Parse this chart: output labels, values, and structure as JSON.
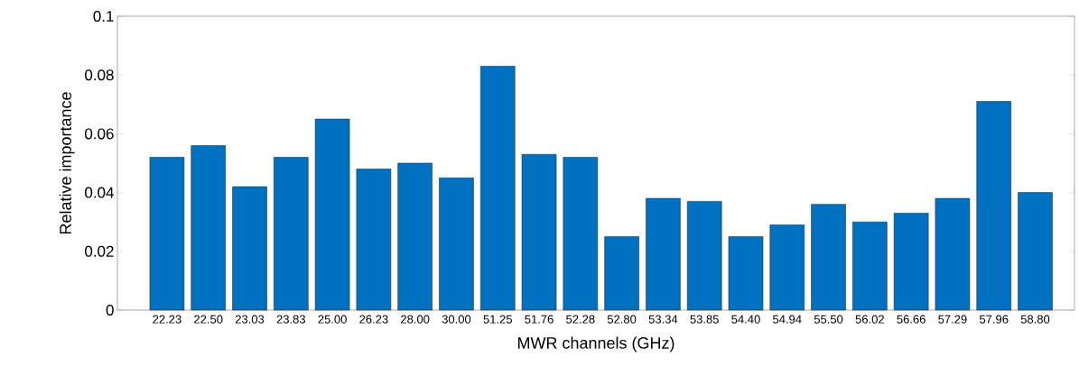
{
  "chart_data": {
    "type": "bar",
    "xlabel": "MWR channels (GHz)",
    "ylabel": "Relative importance",
    "categories": [
      "22.23",
      "22.50",
      "23.03",
      "23.83",
      "25.00",
      "26.23",
      "28.00",
      "30.00",
      "51.25",
      "51.76",
      "52.28",
      "52.80",
      "53.34",
      "53.85",
      "54.40",
      "54.94",
      "55.50",
      "56.02",
      "56.66",
      "57.29",
      "57.96",
      "58.80"
    ],
    "values": [
      0.052,
      0.056,
      0.042,
      0.052,
      0.065,
      0.048,
      0.05,
      0.045,
      0.083,
      0.053,
      0.052,
      0.025,
      0.038,
      0.037,
      0.025,
      0.029,
      0.036,
      0.03,
      0.033,
      0.038,
      0.071,
      0.04
    ],
    "color": "#0070c0",
    "ylim": [
      0,
      0.1
    ],
    "yticks": [
      0,
      {
        "value": 0.02,
        "label": "0.02"
      },
      {
        "value": 0.04,
        "label": "0.04"
      },
      {
        "value": 0.06,
        "label": "0.06"
      },
      {
        "value": 0.08,
        "label": "0.08"
      },
      0.1
    ],
    "grid": false
  }
}
